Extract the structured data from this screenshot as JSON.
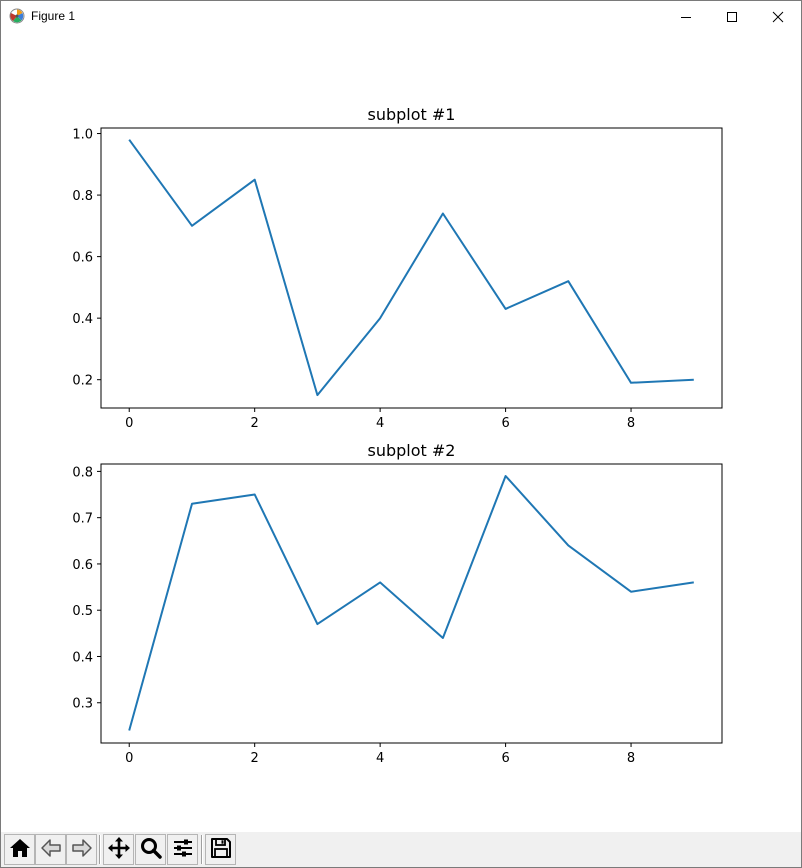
{
  "window": {
    "title": "Figure 1",
    "icon": "matplotlib-logo-icon",
    "controls": [
      "minimize-icon",
      "maximize-icon",
      "close-icon"
    ]
  },
  "toolbar": {
    "buttons": [
      "home-icon",
      "back-arrow-icon",
      "forward-arrow-icon",
      "pan-move-icon",
      "zoom-magnifier-icon",
      "configure-subplots-icon",
      "save-floppy-icon"
    ]
  },
  "line_color": "#1f77b4",
  "chart_data": [
    {
      "type": "line",
      "title": "subplot #1",
      "xlabel": "",
      "ylabel": "",
      "x": [
        0,
        1,
        2,
        3,
        4,
        5,
        6,
        7,
        8,
        9
      ],
      "series": [
        {
          "values": [
            0.98,
            0.7,
            0.85,
            0.15,
            0.4,
            0.74,
            0.43,
            0.52,
            0.19,
            0.2
          ]
        }
      ],
      "xlim": [
        -0.45,
        9.45
      ],
      "ylim": [
        0.108,
        1.018
      ],
      "xticks": [
        0,
        2,
        4,
        6,
        8
      ],
      "xtick_labels": [
        "0",
        "2",
        "4",
        "6",
        "8"
      ],
      "yticks": [
        0.2,
        0.4,
        0.6,
        0.8,
        1.0
      ],
      "ytick_labels": [
        "0.2",
        "0.4",
        "0.6",
        "0.8",
        "1.0"
      ],
      "grid": false
    },
    {
      "type": "line",
      "title": "subplot #2",
      "xlabel": "",
      "ylabel": "",
      "x": [
        0,
        1,
        2,
        3,
        4,
        5,
        6,
        7,
        8,
        9
      ],
      "series": [
        {
          "values": [
            0.24,
            0.73,
            0.75,
            0.47,
            0.56,
            0.44,
            0.79,
            0.64,
            0.54,
            0.56
          ]
        }
      ],
      "xlim": [
        -0.45,
        9.45
      ],
      "ylim": [
        0.213,
        0.816
      ],
      "xticks": [
        0,
        2,
        4,
        6,
        8
      ],
      "xtick_labels": [
        "0",
        "2",
        "4",
        "6",
        "8"
      ],
      "yticks": [
        0.3,
        0.4,
        0.5,
        0.6,
        0.7,
        0.8
      ],
      "ytick_labels": [
        "0.3",
        "0.4",
        "0.5",
        "0.6",
        "0.7",
        "0.8"
      ],
      "grid": false
    }
  ]
}
